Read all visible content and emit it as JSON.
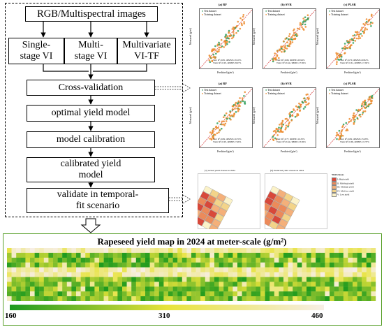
{
  "flowchart": {
    "top_box": "RGB/Multispectral images",
    "vi_boxes": [
      "Single-\nstage VI",
      "Multi-\nstage VI",
      "Multivariate\nVI-TF"
    ],
    "steps": [
      "Cross-validation",
      "optimal yield model",
      "model calibration",
      "calibrated yield\nmodel",
      "validate in temporal-\nfit scenario"
    ]
  },
  "scatter_panels": {
    "row1": [
      {
        "title": "(a) RF",
        "metrics": [
          "Test: R²=0.81, rRMSE=19.10%",
          "Train: R²=0.93, rRMSE=8.67%"
        ]
      },
      {
        "title": "(b) SVR",
        "metrics": [
          "Test: R²=0.68, rRMSE=20.94%",
          "Train: R²=0.64, rRMSE=17.82%"
        ]
      },
      {
        "title": "(c) PLSR",
        "metrics": [
          "Test: R²=0.70, rRMSE=20.82%",
          "Train: R²=0.61, rRMSE=17.92%"
        ]
      }
    ],
    "row2": [
      {
        "title": "(a) RF",
        "metrics": [
          "Test: R²=0.82, rRMSE=16.70%",
          "Train: R²=0.93, rRMSE=7.46%"
        ]
      },
      {
        "title": "(b) SVR",
        "metrics": [
          "Test: R²=0.77, rRMSE=16.33%",
          "Train: R²=0.64, rRMSE=15.82%"
        ]
      },
      {
        "title": "(c) PLSR",
        "metrics": [
          "Test: R²=0.82, rRMSE=15.28%",
          "Train: R²=0.69, rRMSE=15.37%"
        ]
      }
    ],
    "legend_test": "Test dataset",
    "legend_train": "Training dataset",
    "xlabel": "Predicted (g/m²)",
    "ylabel": "Measured (g/m²)",
    "colors": {
      "test": "#2e9f5a",
      "train": "#ec8a2c",
      "line": "#d94141"
    }
  },
  "maps": {
    "left_title": "(a) Actual yield classes in 2024",
    "right_title": "(b) Predicted yield classes in 2024",
    "legend_title": "Yield classes",
    "classes": [
      "I: High yield",
      "II: Mid-high yield",
      "III: Medium yield",
      "IV: Mid-low yield",
      "V: Low yield"
    ],
    "class_colors": [
      "#d8483a",
      "#ec8a5a",
      "#f4b07a",
      "#f3d489",
      "#fbf2c8"
    ]
  },
  "yield_map": {
    "title": "Rapeseed yield map in 2024 at meter-scale (g/m²)",
    "ticks": [
      "160",
      "310",
      "460"
    ],
    "colors": {
      "low": "#1e9a1e",
      "mid": "#e7e33a",
      "high": "#f7eee6"
    }
  }
}
